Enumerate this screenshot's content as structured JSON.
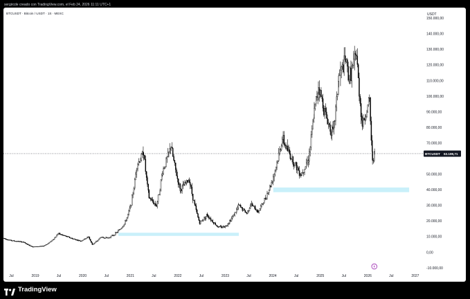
{
  "caption": "sergircde creado con TradingView.com, el Feb 24, 2026 11:11 UTC+1",
  "footer": {
    "brand": "TradingView"
  },
  "chart_data": {
    "type": "candlestick",
    "symbol_label": "BTCUSDT · Bitcoin / USDT · 1S · MEXC",
    "currency": "USDT",
    "price_label": {
      "symbol": "BTCUSDT",
      "value": "63.199,71",
      "price": 63199.71
    },
    "ylim": [
      -10000,
      155000
    ],
    "y_ticks": [
      {
        "v": 150000,
        "label": "150.000,00"
      },
      {
        "v": 140000,
        "label": "140.000,00"
      },
      {
        "v": 130000,
        "label": "130.000,00"
      },
      {
        "v": 120000,
        "label": "120.000,00"
      },
      {
        "v": 110000,
        "label": "110.000,00"
      },
      {
        "v": 100000,
        "label": "100.000,00"
      },
      {
        "v": 90000,
        "label": "90.000,00"
      },
      {
        "v": 80000,
        "label": "80.000,00"
      },
      {
        "v": 70000,
        "label": "70.000,00"
      },
      {
        "v": 50000,
        "label": "50.000,00"
      },
      {
        "v": 40000,
        "label": "40.000,00"
      },
      {
        "v": 30000,
        "label": "30.000,00"
      },
      {
        "v": 20000,
        "label": "20.000,00"
      },
      {
        "v": 10000,
        "label": "10.000,00"
      },
      {
        "v": 0,
        "label": "0,00"
      },
      {
        "v": -10000,
        "label": "-10.000,00"
      }
    ],
    "xlim": [
      "2018-05-01",
      "2027-03-01"
    ],
    "x_ticks": [
      {
        "d": "2018-07-01",
        "label": "Jul"
      },
      {
        "d": "2019-01-01",
        "label": "2019"
      },
      {
        "d": "2019-07-01",
        "label": "Jul"
      },
      {
        "d": "2020-01-01",
        "label": "2020"
      },
      {
        "d": "2020-07-01",
        "label": "Jul"
      },
      {
        "d": "2021-01-01",
        "label": "2021"
      },
      {
        "d": "2021-07-01",
        "label": "Jul"
      },
      {
        "d": "2022-01-01",
        "label": "2022"
      },
      {
        "d": "2022-07-01",
        "label": "Jul"
      },
      {
        "d": "2023-01-01",
        "label": "2023"
      },
      {
        "d": "2023-07-01",
        "label": "Jul"
      },
      {
        "d": "2024-01-01",
        "label": "2024"
      },
      {
        "d": "2024-07-01",
        "label": "Jul"
      },
      {
        "d": "2025-01-01",
        "label": "2025"
      },
      {
        "d": "2025-07-01",
        "label": "Jul"
      },
      {
        "d": "2026-01-01",
        "label": "2026"
      },
      {
        "d": "2026-07-01",
        "label": "Jul"
      },
      {
        "d": "2027-01-01",
        "label": "2027"
      }
    ],
    "zones": [
      {
        "x0": "2020-10-01",
        "x1": "2023-04-15",
        "y0": 10500,
        "y1": 12500,
        "color": "#c9f0fa"
      },
      {
        "x0": "2024-01-05",
        "x1": "2026-11-15",
        "y0": 38500,
        "y1": 41500,
        "color": "#c9f0fa"
      }
    ],
    "price_path": [
      [
        "2018-05-01",
        9000
      ],
      [
        "2018-07-01",
        7500
      ],
      [
        "2018-10-01",
        6500
      ],
      [
        "2018-12-15",
        3500
      ],
      [
        "2019-03-01",
        3900
      ],
      [
        "2019-06-25",
        12000
      ],
      [
        "2019-09-01",
        10000
      ],
      [
        "2019-12-15",
        7200
      ],
      [
        "2020-02-15",
        10000
      ],
      [
        "2020-03-15",
        5000
      ],
      [
        "2020-05-15",
        9500
      ],
      [
        "2020-07-15",
        9200
      ],
      [
        "2020-09-01",
        11500
      ],
      [
        "2020-11-15",
        18000
      ],
      [
        "2020-12-31",
        29000
      ],
      [
        "2021-02-20",
        56000
      ],
      [
        "2021-04-14",
        64000
      ],
      [
        "2021-05-25",
        35000
      ],
      [
        "2021-07-20",
        30000
      ],
      [
        "2021-09-05",
        52000
      ],
      [
        "2021-11-10",
        68000
      ],
      [
        "2022-01-20",
        40000
      ],
      [
        "2022-03-30",
        47000
      ],
      [
        "2022-05-15",
        29000
      ],
      [
        "2022-06-18",
        19000
      ],
      [
        "2022-08-15",
        24000
      ],
      [
        "2022-11-10",
        16000
      ],
      [
        "2022-12-31",
        16500
      ],
      [
        "2023-03-15",
        25000
      ],
      [
        "2023-04-15",
        30000
      ],
      [
        "2023-06-15",
        25000
      ],
      [
        "2023-07-15",
        31000
      ],
      [
        "2023-09-10",
        26000
      ],
      [
        "2023-12-15",
        43000
      ],
      [
        "2024-03-14",
        73000
      ],
      [
        "2024-05-15",
        62000
      ],
      [
        "2024-08-05",
        50000
      ],
      [
        "2024-10-01",
        60000
      ],
      [
        "2024-11-15",
        90000
      ],
      [
        "2024-12-17",
        107000
      ],
      [
        "2025-02-25",
        84000
      ],
      [
        "2025-04-08",
        76000
      ],
      [
        "2025-05-22",
        112000
      ],
      [
        "2025-07-14",
        123000
      ],
      [
        "2025-08-10",
        112000
      ],
      [
        "2025-10-06",
        126000
      ],
      [
        "2025-11-20",
        82000
      ],
      [
        "2026-01-14",
        97000
      ],
      [
        "2026-02-06",
        60000
      ],
      [
        "2026-02-22",
        63199.71
      ]
    ]
  }
}
